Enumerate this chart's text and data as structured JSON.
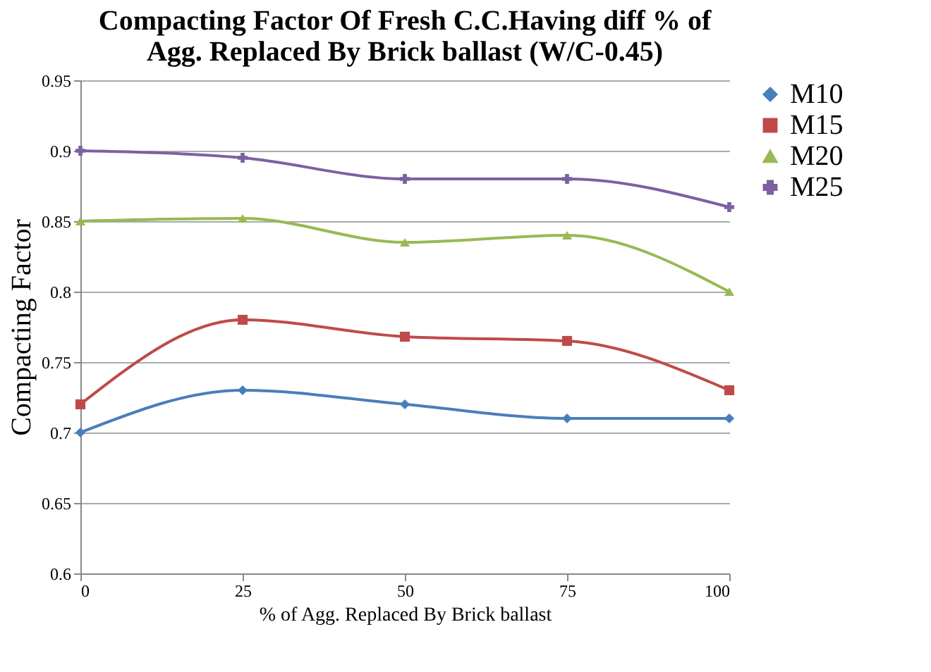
{
  "chart_data": {
    "type": "line",
    "title": [
      "Compacting Factor Of Fresh C.C.Having diff % of",
      "Agg. Replaced By Brick ballast (W/C-0.45)"
    ],
    "xlabel": "% of Agg. Replaced By Brick ballast",
    "ylabel": "Compacting Factor",
    "x": [
      0,
      25,
      50,
      75,
      100
    ],
    "xlim": [
      0,
      100
    ],
    "xticks": [
      0,
      25,
      50,
      75,
      100
    ],
    "ylim": [
      0.6,
      0.95
    ],
    "yticks": [
      0.6,
      0.65,
      0.7,
      0.75,
      0.8,
      0.85,
      0.9,
      0.95
    ],
    "grid": "y",
    "legend": "right",
    "line_style": "solid",
    "series": [
      {
        "name": "M10",
        "color": "#4a7ebb",
        "marker": "diamond",
        "values": [
          0.7,
          0.73,
          0.72,
          0.71,
          0.71
        ]
      },
      {
        "name": "M15",
        "color": "#be4b48",
        "marker": "square",
        "values": [
          0.72,
          0.78,
          0.768,
          0.765,
          0.73
        ]
      },
      {
        "name": "M20",
        "color": "#98b954",
        "marker": "triangle",
        "values": [
          0.85,
          0.852,
          0.835,
          0.84,
          0.8
        ]
      },
      {
        "name": "M25",
        "color": "#7d60a0",
        "marker": "cross",
        "values": [
          0.9,
          0.895,
          0.88,
          0.88,
          0.86
        ]
      }
    ]
  }
}
